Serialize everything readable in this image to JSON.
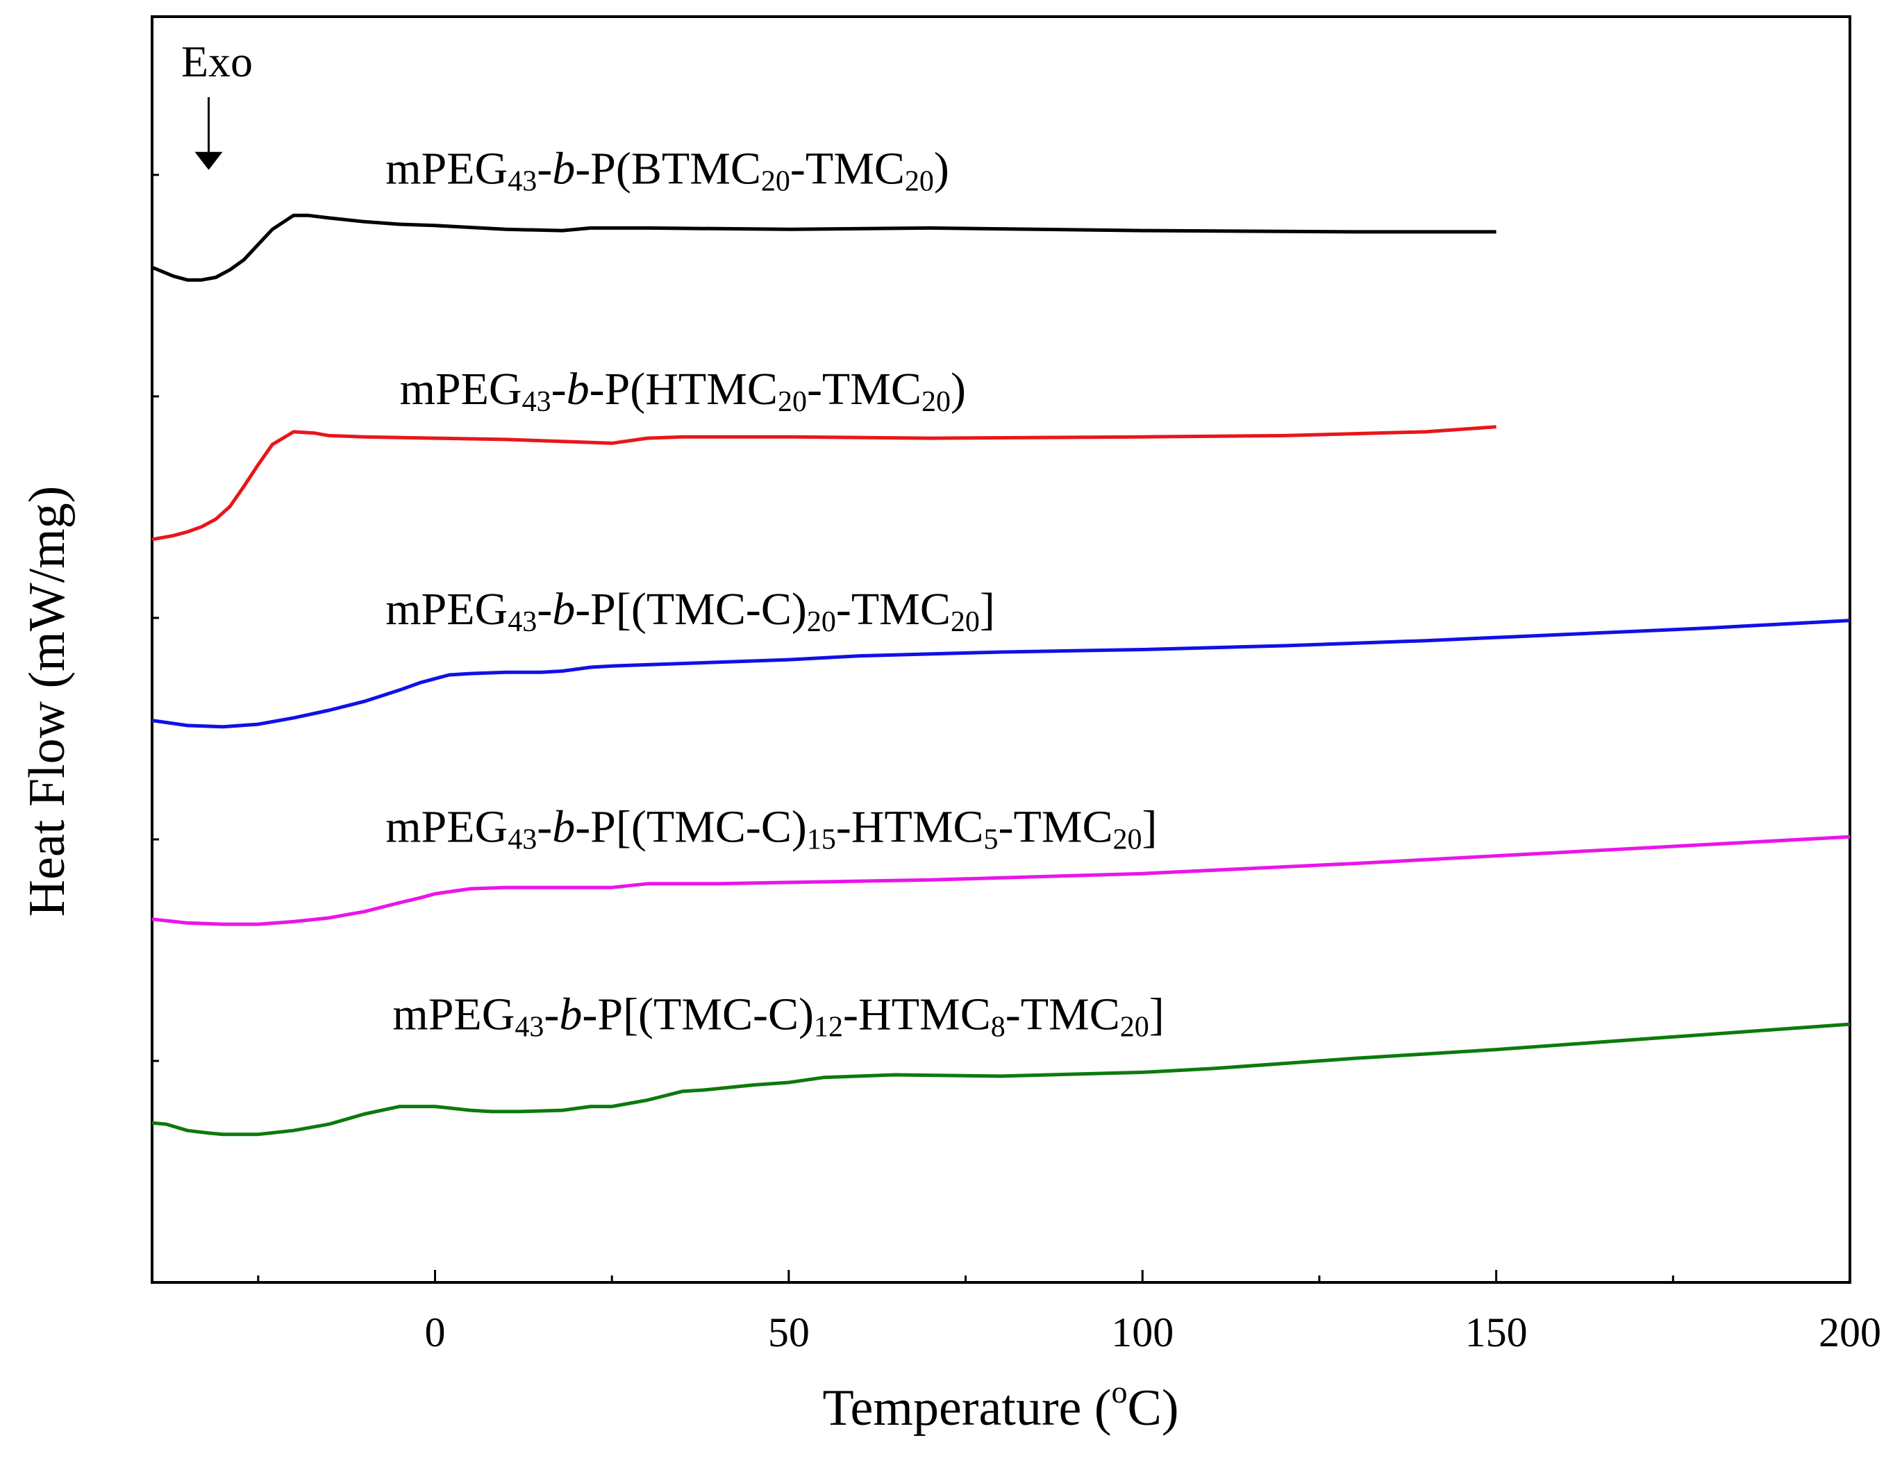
{
  "chart_data": {
    "type": "line",
    "xlabel_main": "Temperature (",
    "xlabel_sup": "o",
    "xlabel_end": "C)",
    "ylabel": "Heat Flow (mW/mg)",
    "xlim": [
      -40,
      200
    ],
    "ylim": [
      0,
      100
    ],
    "y_ticks_shown": false,
    "x_ticks": [
      0,
      50,
      100,
      150,
      200
    ],
    "x_tick_labels": [
      "0",
      "50",
      "100",
      "150",
      "200"
    ],
    "x_minor_ticks": [
      -25,
      25,
      75,
      125,
      175
    ],
    "y_minor_ticks": [
      17.5,
      35,
      52.5,
      70,
      87.5
    ],
    "annotation": {
      "text": "Exo",
      "x": -32,
      "arrow_to_y": 88
    },
    "series": [
      {
        "name": "mPEG43-b-P(BTMC20-TMC20)",
        "color": "#000000",
        "label_parts": [
          {
            "t": "mPEG"
          },
          {
            "t": "43",
            "sub": true
          },
          {
            "t": "-"
          },
          {
            "t": "b",
            "italic": true
          },
          {
            "t": "-P(BTMC"
          },
          {
            "t": "20",
            "sub": true
          },
          {
            "t": "-TMC"
          },
          {
            "t": "20",
            "sub": true
          },
          {
            "t": ")"
          }
        ],
        "label_pos": {
          "x": -7,
          "y": 86.8
        },
        "x": [
          -40,
          -37,
          -35,
          -33,
          -31,
          -29,
          -27,
          -25,
          -23,
          -20,
          -18,
          -15,
          -10,
          -5,
          0,
          10,
          18,
          22,
          30,
          50,
          70,
          100,
          130,
          150
        ],
        "y": [
          80.2,
          79.5,
          79.2,
          79.2,
          79.4,
          80.0,
          80.8,
          82.0,
          83.2,
          84.3,
          84.3,
          84.1,
          83.8,
          83.6,
          83.5,
          83.2,
          83.1,
          83.3,
          83.3,
          83.2,
          83.3,
          83.1,
          83.0,
          83.0
        ]
      },
      {
        "name": "mPEG43-b-P(HTMC20-TMC20)",
        "color": "#e8161b",
        "label_parts": [
          {
            "t": "mPEG"
          },
          {
            "t": "43",
            "sub": true
          },
          {
            "t": "-"
          },
          {
            "t": "b",
            "italic": true
          },
          {
            "t": "-P(HTMC"
          },
          {
            "t": "20",
            "sub": true
          },
          {
            "t": "-TMC"
          },
          {
            "t": "20",
            "sub": true
          },
          {
            "t": ")"
          }
        ],
        "label_pos": {
          "x": -5,
          "y": 69.4
        },
        "x": [
          -40,
          -37,
          -35,
          -33,
          -31,
          -29,
          -27,
          -25,
          -23,
          -20,
          -17,
          -15,
          -10,
          0,
          10,
          20,
          25,
          30,
          35,
          50,
          70,
          100,
          120,
          140,
          150
        ],
        "y": [
          58.7,
          59.0,
          59.3,
          59.7,
          60.3,
          61.3,
          62.9,
          64.6,
          66.2,
          67.2,
          67.1,
          66.9,
          66.8,
          66.7,
          66.6,
          66.4,
          66.3,
          66.7,
          66.8,
          66.8,
          66.7,
          66.8,
          66.9,
          67.2,
          67.6
        ]
      },
      {
        "name": "mPEG43-b-P[(TMC-C)20-TMC20]",
        "color": "#1010e6",
        "label_parts": [
          {
            "t": "mPEG"
          },
          {
            "t": "43",
            "sub": true
          },
          {
            "t": "-"
          },
          {
            "t": "b",
            "italic": true
          },
          {
            "t": "-P[(TMC-C)"
          },
          {
            "t": "20",
            "sub": true
          },
          {
            "t": "-TMC"
          },
          {
            "t": "20",
            "sub": true
          },
          {
            "t": "]"
          }
        ],
        "label_pos": {
          "x": -7,
          "y": 52.0
        },
        "x": [
          -40,
          -35,
          -30,
          -25,
          -20,
          -15,
          -10,
          -5,
          -2,
          0,
          2,
          5,
          10,
          15,
          18,
          22,
          25,
          30,
          40,
          50,
          60,
          80,
          100,
          120,
          140,
          160,
          180,
          200
        ],
        "y": [
          44.4,
          44.0,
          43.9,
          44.1,
          44.6,
          45.2,
          45.9,
          46.8,
          47.4,
          47.7,
          48.0,
          48.1,
          48.2,
          48.2,
          48.3,
          48.6,
          48.7,
          48.8,
          49.0,
          49.2,
          49.5,
          49.8,
          50.0,
          50.3,
          50.7,
          51.2,
          51.7,
          52.3
        ]
      },
      {
        "name": "mPEG43-b-P[(TMC-C)15-HTMC5-TMC20]",
        "color": "#ea15ea",
        "label_parts": [
          {
            "t": "mPEG"
          },
          {
            "t": "43",
            "sub": true
          },
          {
            "t": "-"
          },
          {
            "t": "b",
            "italic": true
          },
          {
            "t": "-P[(TMC-C)"
          },
          {
            "t": "15",
            "sub": true
          },
          {
            "t": "-HTMC"
          },
          {
            "t": "5",
            "sub": true
          },
          {
            "t": "-TMC"
          },
          {
            "t": "20",
            "sub": true
          },
          {
            "t": "]"
          }
        ],
        "label_pos": {
          "x": -7,
          "y": 34.8
        },
        "x": [
          -40,
          -35,
          -30,
          -25,
          -20,
          -15,
          -10,
          -5,
          -2,
          0,
          5,
          10,
          20,
          25,
          30,
          40,
          50,
          70,
          100,
          130,
          160,
          180,
          200
        ],
        "y": [
          28.7,
          28.4,
          28.3,
          28.3,
          28.5,
          28.8,
          29.3,
          30.0,
          30.4,
          30.7,
          31.1,
          31.2,
          31.2,
          31.2,
          31.5,
          31.5,
          31.6,
          31.8,
          32.3,
          33.1,
          34.0,
          34.6,
          35.2
        ]
      },
      {
        "name": "mPEG43-b-P[(TMC-C)12-HTMC8-TMC20]",
        "color": "#0c7a0c",
        "label_parts": [
          {
            "t": "mPEG"
          },
          {
            "t": "43",
            "sub": true
          },
          {
            "t": "-"
          },
          {
            "t": "b",
            "italic": true
          },
          {
            "t": "-P[(TMC-C)"
          },
          {
            "t": "12",
            "sub": true
          },
          {
            "t": "-HTMC"
          },
          {
            "t": "8",
            "sub": true
          },
          {
            "t": "-TMC"
          },
          {
            "t": "20",
            "sub": true
          },
          {
            "t": "]"
          }
        ],
        "label_pos": {
          "x": -6,
          "y": 20.0
        },
        "x": [
          -40,
          -38,
          -35,
          -32,
          -30,
          -25,
          -20,
          -15,
          -10,
          -5,
          0,
          5,
          8,
          12,
          18,
          22,
          25,
          30,
          35,
          38,
          45,
          50,
          55,
          65,
          80,
          100,
          110,
          120,
          130,
          150,
          170,
          190,
          200
        ],
        "y": [
          12.6,
          12.5,
          12.0,
          11.8,
          11.7,
          11.7,
          12.0,
          12.5,
          13.3,
          13.9,
          13.9,
          13.6,
          13.5,
          13.5,
          13.6,
          13.9,
          13.9,
          14.4,
          15.1,
          15.2,
          15.6,
          15.8,
          16.2,
          16.4,
          16.3,
          16.6,
          16.9,
          17.3,
          17.7,
          18.4,
          19.2,
          20.0,
          20.4
        ]
      }
    ]
  }
}
